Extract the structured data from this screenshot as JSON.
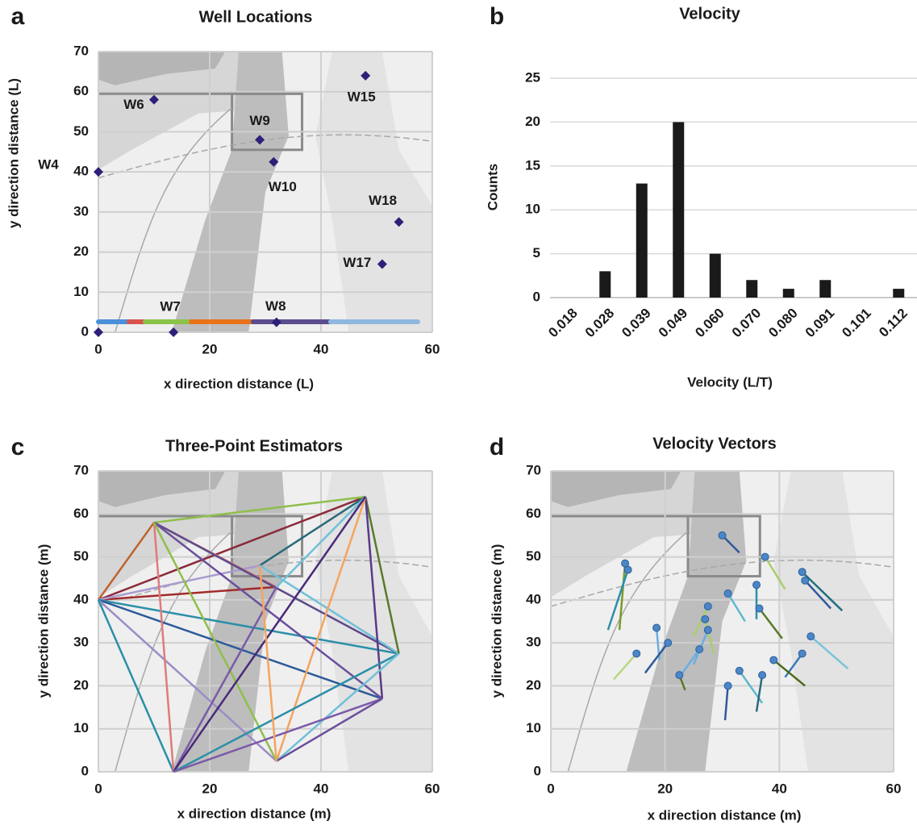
{
  "chart_data": [
    {
      "type": "scatter",
      "panel_label": "a",
      "title": "Well Locations",
      "x_label": "x direction distance (L)",
      "y_label": "y direction distance (L)",
      "x": [
        0,
        10,
        29,
        31.5,
        48,
        54,
        51,
        13.5,
        32,
        0
      ],
      "y": [
        40,
        58,
        48,
        42.5,
        64,
        27.5,
        17,
        0,
        2.5,
        0
      ],
      "point_labels": [
        "W4",
        "W6",
        "W9",
        "W10",
        "W15",
        "W18",
        "W17",
        "W7",
        "W8",
        null
      ],
      "color": "#2e1f78",
      "xlim": [
        0,
        60
      ],
      "ylim": [
        0,
        70
      ],
      "xticks": [
        0,
        20,
        40,
        60
      ],
      "yticks": [
        0,
        10,
        20,
        30,
        40,
        50,
        60,
        70
      ],
      "grid": true
    },
    {
      "type": "bar",
      "panel_label": "b",
      "title": "Velocity",
      "x_label": "Velocity (L/T)",
      "y_label": "Counts",
      "categories": [
        "0.018",
        "0.028",
        "0.039",
        "0.049",
        "0.060",
        "0.070",
        "0.080",
        "0.091",
        "0.101",
        "0.112"
      ],
      "values": [
        0,
        3,
        13,
        20,
        5,
        2,
        1,
        2,
        0,
        1
      ],
      "color": "#1a1a1a",
      "ylim": [
        0,
        25
      ],
      "yticks": [
        0,
        5,
        10,
        15,
        20,
        25
      ],
      "grid": true
    },
    {
      "type": "segments",
      "panel_label": "c",
      "title": "Three-Point Estimators",
      "x_label": "x direction distance (m)",
      "y_label": "y direction distance (m)",
      "segments": [
        {
          "color": "#c0622a",
          "x": [
            0,
            10
          ],
          "y": [
            40,
            58
          ]
        },
        {
          "color": "#8b2a3a",
          "x": [
            0,
            48
          ],
          "y": [
            40,
            64
          ]
        },
        {
          "color": "#a32a2a",
          "x": [
            0,
            32
          ],
          "y": [
            40,
            43
          ]
        },
        {
          "color": "#a99bd0",
          "x": [
            0,
            29
          ],
          "y": [
            40,
            48
          ]
        },
        {
          "color": "#2b8fa8",
          "x": [
            0,
            54
          ],
          "y": [
            40,
            27.5
          ]
        },
        {
          "color": "#2e5a9a",
          "x": [
            0,
            51
          ],
          "y": [
            40,
            17
          ]
        },
        {
          "color": "#9c8cc8",
          "x": [
            0,
            32
          ],
          "y": [
            40,
            2.5
          ]
        },
        {
          "color": "#2b8fa8",
          "x": [
            0,
            13.5
          ],
          "y": [
            40,
            0
          ]
        },
        {
          "color": "#8fbf4a",
          "x": [
            10,
            48
          ],
          "y": [
            58,
            64
          ]
        },
        {
          "color": "#e07a7a",
          "x": [
            10,
            32
          ],
          "y": [
            58,
            43
          ]
        },
        {
          "color": "#5e4a8a",
          "x": [
            10,
            54
          ],
          "y": [
            58,
            27.5
          ]
        },
        {
          "color": "#6a4f9a",
          "x": [
            10,
            51
          ],
          "y": [
            58,
            17
          ]
        },
        {
          "color": "#e07a7a",
          "x": [
            10,
            13.5
          ],
          "y": [
            58,
            0
          ]
        },
        {
          "color": "#8fbf4a",
          "x": [
            10,
            32
          ],
          "y": [
            58,
            2.5
          ]
        },
        {
          "color": "#2a6a7a",
          "x": [
            29,
            48
          ],
          "y": [
            48,
            64
          ]
        },
        {
          "color": "#6fc0d8",
          "x": [
            29,
            54
          ],
          "y": [
            48,
            27.5
          ]
        },
        {
          "color": "#6fc0d8",
          "x": [
            32,
            48
          ],
          "y": [
            43,
            64
          ]
        },
        {
          "color": "#7a5aa8",
          "x": [
            32,
            13.5
          ],
          "y": [
            43,
            0
          ]
        },
        {
          "color": "#5a7a2a",
          "x": [
            48,
            54
          ],
          "y": [
            64,
            27.5
          ]
        },
        {
          "color": "#5a3a8a",
          "x": [
            48,
            51
          ],
          "y": [
            64,
            17
          ]
        },
        {
          "color": "#f4a460",
          "x": [
            48,
            32
          ],
          "y": [
            64,
            2.5
          ]
        },
        {
          "color": "#4a2a7a",
          "x": [
            48,
            13.5
          ],
          "y": [
            64,
            0
          ]
        },
        {
          "color": "#2b8fa8",
          "x": [
            54,
            13.5
          ],
          "y": [
            27.5,
            0
          ]
        },
        {
          "color": "#6fc0d8",
          "x": [
            54,
            32
          ],
          "y": [
            27.5,
            2.5
          ]
        },
        {
          "color": "#7a5aa8",
          "x": [
            51,
            13.5
          ],
          "y": [
            17,
            0
          ]
        },
        {
          "color": "#6a4f9a",
          "x": [
            51,
            32
          ],
          "y": [
            17,
            2.5
          ]
        },
        {
          "color": "#f4a460",
          "x": [
            29,
            32
          ],
          "y": [
            48,
            2.5
          ]
        }
      ],
      "xlim": [
        0,
        60
      ],
      "ylim": [
        0,
        70
      ],
      "xticks": [
        0,
        20,
        40,
        60
      ],
      "yticks": [
        0,
        10,
        20,
        30,
        40,
        50,
        60,
        70
      ],
      "grid": true
    },
    {
      "type": "vectors",
      "panel_label": "d",
      "title": "Velocity Vectors",
      "x_label": "x direction distance (m)",
      "y_label": "y direction distance (m)",
      "point_color": "#4a86c8",
      "vectors": [
        {
          "color": "#2e5a9a",
          "x": [
            30,
            33
          ],
          "y": [
            55,
            51
          ]
        },
        {
          "color": "#7a9a2a",
          "x": [
            13,
            12
          ],
          "y": [
            48.5,
            33
          ]
        },
        {
          "color": "#2b8fa8",
          "x": [
            13.5,
            10
          ],
          "y": [
            47,
            33
          ]
        },
        {
          "color": "#a8cf6a",
          "x": [
            37.5,
            41
          ],
          "y": [
            50,
            42.5
          ]
        },
        {
          "color": "#1f6f7f",
          "x": [
            44,
            51
          ],
          "y": [
            46.5,
            37.5
          ]
        },
        {
          "color": "#2e5a9a",
          "x": [
            44.5,
            49
          ],
          "y": [
            44.5,
            38
          ]
        },
        {
          "color": "#2b8fa8",
          "x": [
            36,
            36
          ],
          "y": [
            43.5,
            35.5
          ]
        },
        {
          "color": "#5fb8d0",
          "x": [
            31,
            34
          ],
          "y": [
            41.5,
            35
          ]
        },
        {
          "color": "#5a7a2a",
          "x": [
            36.5,
            40.5
          ],
          "y": [
            38,
            31
          ]
        },
        {
          "color": "#a8cf6a",
          "x": [
            27.5,
            25
          ],
          "y": [
            38.5,
            31.5
          ]
        },
        {
          "color": "#a8cf6a",
          "x": [
            27,
            28.5
          ],
          "y": [
            35.5,
            27.5
          ]
        },
        {
          "color": "#6aaee0",
          "x": [
            18.5,
            19
          ],
          "y": [
            33.5,
            26
          ]
        },
        {
          "color": "#6aaee0",
          "x": [
            27.5,
            25
          ],
          "y": [
            33,
            25
          ]
        },
        {
          "color": "#2e5a9a",
          "x": [
            20.5,
            16.5
          ],
          "y": [
            30,
            23
          ]
        },
        {
          "color": "#b8d880",
          "x": [
            15,
            11
          ],
          "y": [
            27.5,
            21.5
          ]
        },
        {
          "color": "#6aaee0",
          "x": [
            26,
            22.5
          ],
          "y": [
            28.5,
            22
          ]
        },
        {
          "color": "#5a7a2a",
          "x": [
            22.5,
            23.5
          ],
          "y": [
            22.5,
            19
          ]
        },
        {
          "color": "#7ac4d8",
          "x": [
            45.5,
            52
          ],
          "y": [
            31.5,
            24
          ]
        },
        {
          "color": "#3a7ab8",
          "x": [
            44,
            41
          ],
          "y": [
            27.5,
            22
          ]
        },
        {
          "color": "#4a6a1a",
          "x": [
            39,
            44.5
          ],
          "y": [
            26,
            20
          ]
        },
        {
          "color": "#5fb8d0",
          "x": [
            33,
            37
          ],
          "y": [
            23.5,
            16
          ]
        },
        {
          "color": "#2a6a7a",
          "x": [
            37,
            36
          ],
          "y": [
            22.5,
            14
          ]
        },
        {
          "color": "#2e5a9a",
          "x": [
            31,
            30.5
          ],
          "y": [
            20,
            12
          ]
        }
      ],
      "xlim": [
        0,
        60
      ],
      "ylim": [
        0,
        70
      ],
      "xticks": [
        0,
        20,
        40,
        60
      ],
      "yticks": [
        0,
        10,
        20,
        30,
        40,
        50,
        60,
        70
      ],
      "grid": true
    }
  ]
}
